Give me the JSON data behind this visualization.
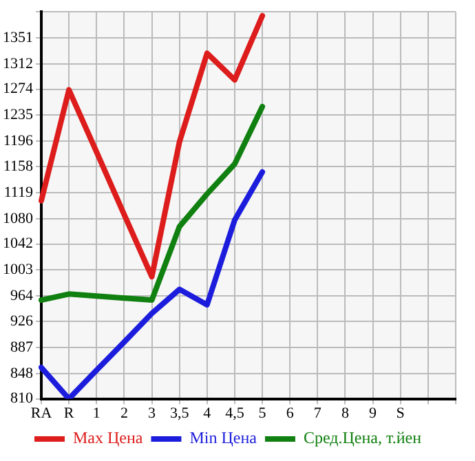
{
  "chart_data": {
    "type": "line",
    "categories": [
      "RA",
      "R",
      "1",
      "2",
      "3",
      "3,5",
      "4",
      "4,5",
      "5",
      "6",
      "7",
      "8",
      "9",
      "S",
      null,
      null
    ],
    "series": [
      {
        "name": "Max Цена",
        "color": "#dd1c1c",
        "values": [
          1107,
          1273,
          1180,
          1086,
          993,
          1195,
          1328,
          1288,
          1384,
          null,
          null,
          null,
          null,
          null,
          null,
          null
        ]
      },
      {
        "name": "Min Цена",
        "color": "#1c1cdd",
        "values": [
          857,
          810,
          853,
          895,
          938,
          974,
          951,
          1078,
          1150,
          null,
          null,
          null,
          null,
          null,
          null,
          null
        ]
      },
      {
        "name": "Сред.Цена, т.йен",
        "color": "#108010",
        "values": [
          958,
          967,
          964,
          961,
          958,
          1068,
          1117,
          1162,
          1248,
          null,
          null,
          null,
          null,
          null,
          null,
          null
        ]
      }
    ],
    "ylim": [
      810,
      1390
    ],
    "yticks": [
      810,
      848,
      887,
      926,
      964,
      1003,
      1042,
      1080,
      1119,
      1158,
      1196,
      1235,
      1274,
      1312,
      1351,
      {
        "value": 1390,
        "label": null
      }
    ],
    "grid": true,
    "legend": "bottom",
    "marker": "none",
    "line_style": "solid"
  }
}
